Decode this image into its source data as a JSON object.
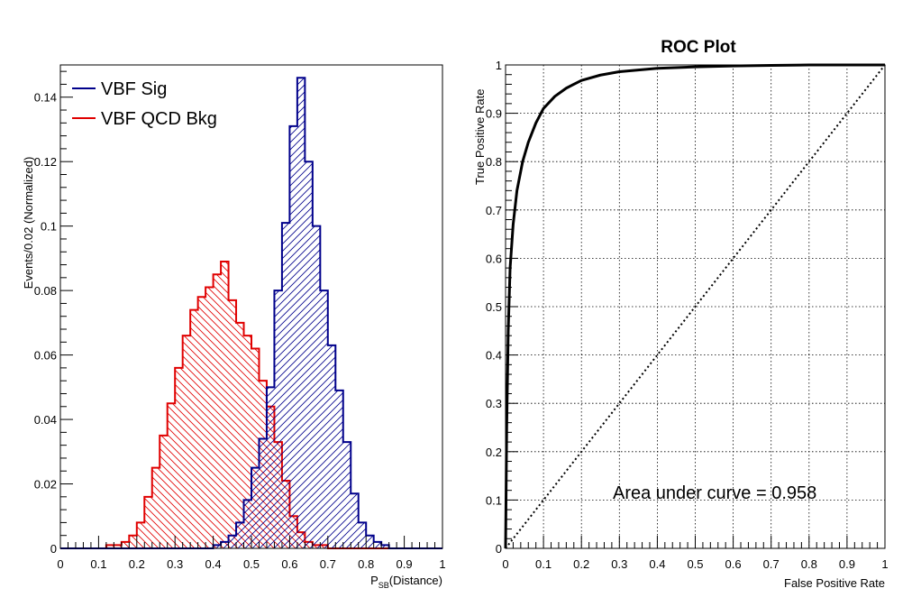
{
  "colors": {
    "signal": "#00008b",
    "background": "#e00000",
    "roc": "#000000"
  },
  "chart_data": [
    {
      "type": "step-histogram",
      "xlabel": "P_SB(Distance)",
      "xlabel_main": "P",
      "xlabel_sub": "SB",
      "xlabel_rest": "(Distance)",
      "ylabel": "Events/0.02 (Normalized)",
      "xlim": [
        0,
        1
      ],
      "ylim": [
        0,
        0.15
      ],
      "bin_width": 0.02,
      "x_ticks": [
        "0",
        "0.1",
        "0.2",
        "0.3",
        "0.4",
        "0.5",
        "0.6",
        "0.7",
        "0.8",
        "0.9",
        "1"
      ],
      "y_ticks": [
        "0",
        "0.02",
        "0.04",
        "0.06",
        "0.08",
        "0.1",
        "0.12",
        "0.14"
      ],
      "y_tick_values": [
        0,
        0.02,
        0.04,
        0.06,
        0.08,
        0.1,
        0.12,
        0.14
      ],
      "legend_position": "top-left",
      "series": [
        {
          "name": "VBF Sig",
          "hatch": "forward",
          "values": [
            0,
            0,
            0,
            0,
            0,
            0,
            0,
            0,
            0,
            0,
            0,
            0,
            0,
            0,
            0,
            0,
            0,
            0,
            0,
            0,
            0.001,
            0.002,
            0.004,
            0.008,
            0.015,
            0.025,
            0.034,
            0.05,
            0.08,
            0.101,
            0.131,
            0.146,
            0.12,
            0.1,
            0.08,
            0.063,
            0.049,
            0.033,
            0.017,
            0.008,
            0.004,
            0.002,
            0.001,
            0,
            0,
            0,
            0,
            0,
            0,
            0
          ]
        },
        {
          "name": "VBF QCD Bkg",
          "hatch": "backward",
          "values": [
            0,
            0,
            0,
            0,
            0,
            0,
            0.001,
            0.001,
            0.002,
            0.004,
            0.008,
            0.016,
            0.025,
            0.035,
            0.045,
            0.056,
            0.066,
            0.074,
            0.078,
            0.081,
            0.085,
            0.089,
            0.077,
            0.07,
            0.066,
            0.062,
            0.052,
            0.044,
            0.033,
            0.021,
            0.01,
            0.005,
            0.002,
            0.001,
            0.001,
            0,
            0,
            0,
            0,
            0,
            0,
            0,
            0,
            0,
            0,
            0,
            0,
            0,
            0,
            0
          ]
        }
      ]
    },
    {
      "type": "line",
      "title": "ROC Plot",
      "xlabel": "False Positive Rate",
      "ylabel": "True Positive Rate",
      "xlim": [
        0,
        1
      ],
      "ylim": [
        0,
        1
      ],
      "grid": true,
      "x_ticks": [
        "0",
        "0.1",
        "0.2",
        "0.3",
        "0.4",
        "0.5",
        "0.6",
        "0.7",
        "0.8",
        "0.9",
        "1"
      ],
      "y_ticks": [
        "0",
        "0.1",
        "0.2",
        "0.3",
        "0.4",
        "0.5",
        "0.6",
        "0.7",
        "0.8",
        "0.9",
        "1"
      ],
      "annotation": "Area under curve = 0.958",
      "series": [
        {
          "style": "solid",
          "x": [
            0,
            0.003,
            0.007,
            0.012,
            0.02,
            0.03,
            0.045,
            0.06,
            0.08,
            0.1,
            0.13,
            0.16,
            0.2,
            0.25,
            0.3,
            0.4,
            0.5,
            0.6,
            0.7,
            0.8,
            0.9,
            1.0
          ],
          "y": [
            0,
            0.25,
            0.45,
            0.58,
            0.67,
            0.74,
            0.8,
            0.84,
            0.88,
            0.91,
            0.935,
            0.952,
            0.968,
            0.979,
            0.986,
            0.993,
            0.996,
            0.998,
            0.999,
            1.0,
            1.0,
            1.0
          ]
        },
        {
          "style": "dotted",
          "x": [
            0,
            1
          ],
          "y": [
            0,
            1
          ]
        }
      ]
    }
  ]
}
